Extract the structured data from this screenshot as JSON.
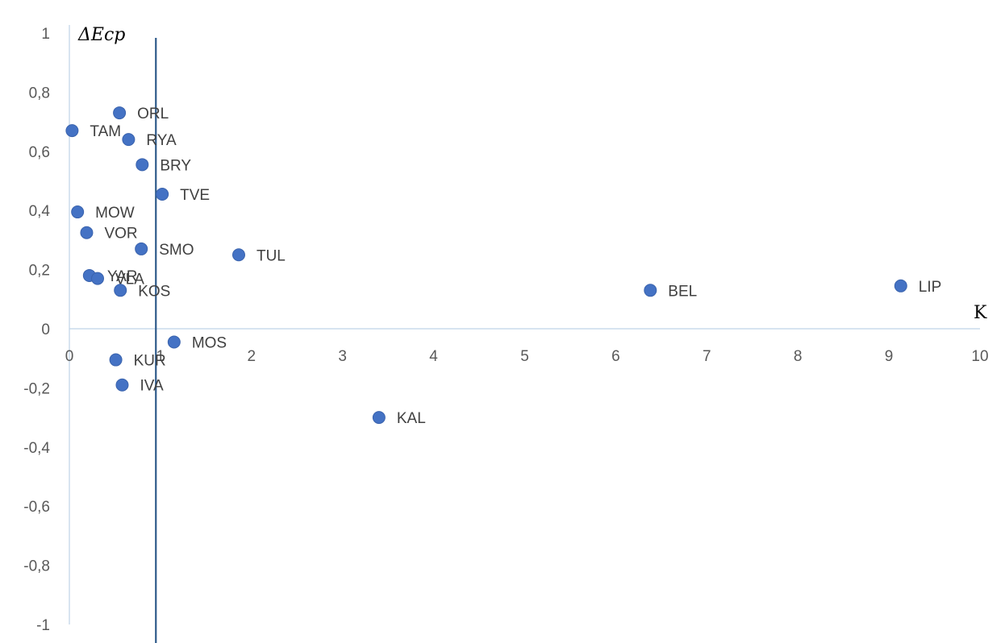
{
  "chart_data": {
    "type": "scatter",
    "xlabel": "K",
    "ylabel": "ΔEcp",
    "xlim": [
      0,
      10
    ],
    "ylim": [
      -1,
      1
    ],
    "x_ticks": [
      "0",
      "1",
      "2",
      "3",
      "4",
      "5",
      "6",
      "7",
      "8",
      "9",
      "10"
    ],
    "y_ticks": [
      "1",
      "0,8",
      "0,6",
      "0,4",
      "0,2",
      "0",
      "-0,2",
      "-0,4",
      "-0,6",
      "-0,8",
      "-1"
    ],
    "reference_line_x": 0.95,
    "grid": false,
    "marker_color": "#4472C4",
    "points": [
      {
        "label": "ORL",
        "x": 0.55,
        "y": 0.73
      },
      {
        "label": "TAM",
        "x": 0.03,
        "y": 0.67
      },
      {
        "label": "RYA",
        "x": 0.65,
        "y": 0.64
      },
      {
        "label": "BRY",
        "x": 0.8,
        "y": 0.555
      },
      {
        "label": "TVE",
        "x": 1.02,
        "y": 0.455
      },
      {
        "label": "MOW",
        "x": 0.09,
        "y": 0.395
      },
      {
        "label": "VOR",
        "x": 0.19,
        "y": 0.325
      },
      {
        "label": "SMO",
        "x": 0.79,
        "y": 0.27
      },
      {
        "label": "TUL",
        "x": 1.86,
        "y": 0.25
      },
      {
        "label": "YAR",
        "x": 0.22,
        "y": 0.18
      },
      {
        "label": "VLA",
        "x": 0.31,
        "y": 0.17
      },
      {
        "label": "KOS",
        "x": 0.56,
        "y": 0.13
      },
      {
        "label": "BEL",
        "x": 6.38,
        "y": 0.13
      },
      {
        "label": "LIP",
        "x": 9.13,
        "y": 0.145
      },
      {
        "label": "MOS",
        "x": 1.15,
        "y": -0.045
      },
      {
        "label": "KUR",
        "x": 0.51,
        "y": -0.105
      },
      {
        "label": "IVA",
        "x": 0.58,
        "y": -0.19
      },
      {
        "label": "KAL",
        "x": 3.4,
        "y": -0.3
      }
    ]
  }
}
